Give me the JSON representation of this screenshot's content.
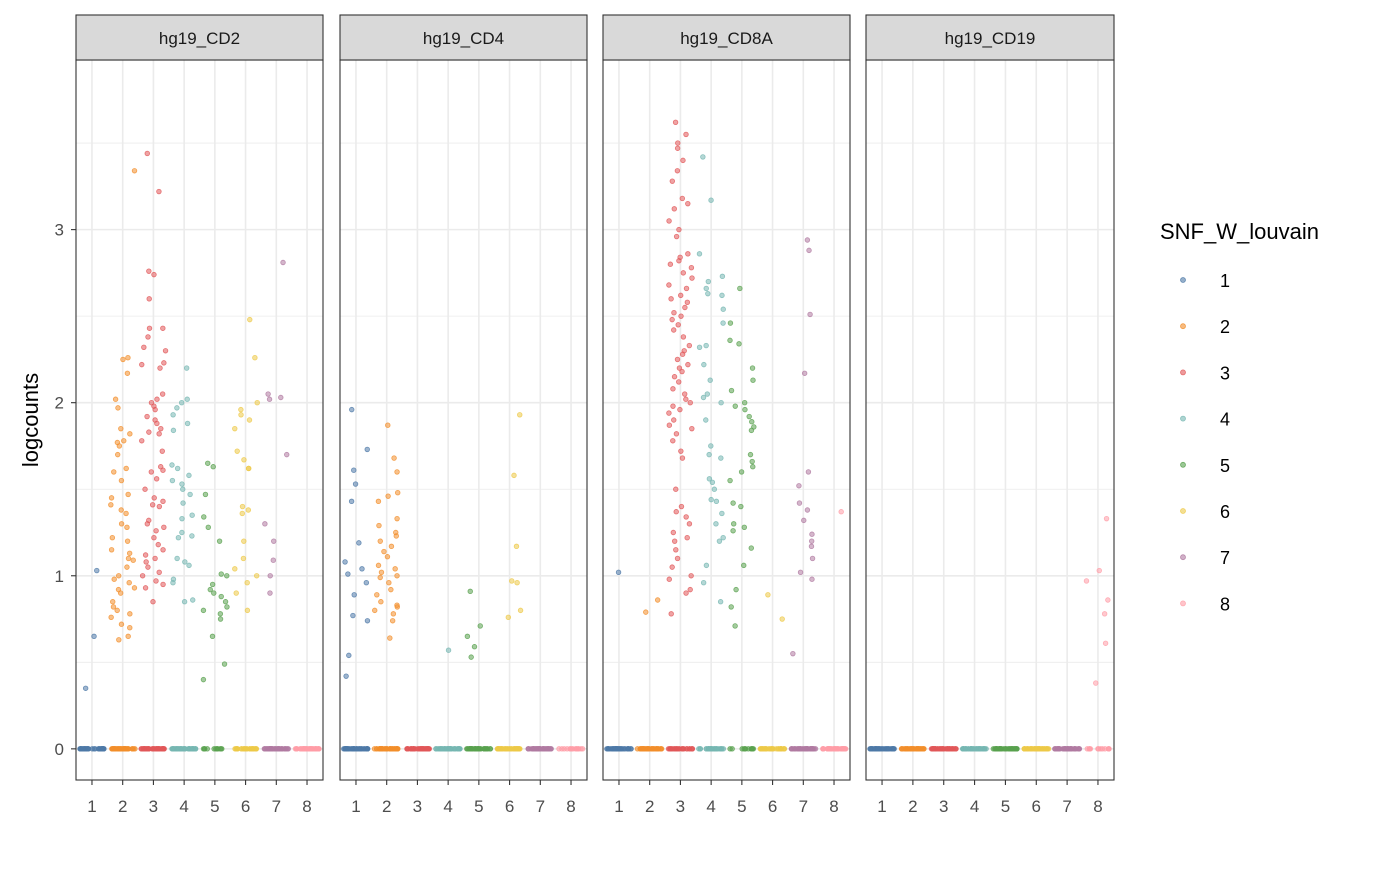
{
  "chart_data": {
    "type": "scatter",
    "subtype": "jitter-faceted",
    "ylabel": "logcounts",
    "xlabel": "",
    "ylim": [
      -0.18,
      3.98
    ],
    "xlim": [
      0.48,
      8.52
    ],
    "yticks": [
      0,
      1,
      2,
      3
    ],
    "xticks": [
      "1",
      "2",
      "3",
      "4",
      "5",
      "6",
      "7",
      "8"
    ],
    "grid": true,
    "legend": {
      "title": "SNF_W_louvain",
      "placement": "right",
      "entries": [
        "1",
        "2",
        "3",
        "4",
        "5",
        "6",
        "7",
        "8"
      ],
      "colors": [
        "#4E79A7",
        "#F28E2B",
        "#E15759",
        "#76B7B2",
        "#59A14F",
        "#EDC948",
        "#B07AA1",
        "#FF9DA7"
      ]
    },
    "facets": [
      {
        "title": "hg19_CD2",
        "zero_counts": [
          40,
          40,
          40,
          40,
          12,
          25,
          40,
          40
        ],
        "nonzero": {
          "1": [
            1.03,
            0.65,
            0.35
          ],
          "2": [
            3.34,
            2.25,
            2.26,
            2.17,
            2.02,
            1.97,
            1.85,
            1.82,
            1.78,
            1.77,
            1.75,
            1.7,
            1.62,
            1.6,
            1.55,
            1.47,
            1.45,
            1.41,
            1.38,
            1.36,
            1.3,
            1.28,
            1.22,
            1.2,
            1.15,
            1.13,
            1.1,
            1.09,
            1.05,
            1.0,
            0.98,
            0.96,
            0.93,
            0.92,
            0.9,
            0.85,
            0.82,
            0.8,
            0.78,
            0.76,
            0.72,
            0.7,
            0.65,
            0.63
          ],
          "3": [
            3.44,
            3.22,
            2.76,
            2.74,
            2.6,
            2.43,
            2.43,
            2.38,
            2.32,
            2.3,
            2.23,
            2.22,
            2.2,
            2.05,
            2.02,
            2.0,
            1.98,
            1.96,
            1.92,
            1.9,
            1.88,
            1.85,
            1.83,
            1.82,
            1.78,
            1.72,
            1.63,
            1.61,
            1.6,
            1.56,
            1.5,
            1.45,
            1.43,
            1.41,
            1.4,
            1.32,
            1.3,
            1.28,
            1.26,
            1.22,
            1.18,
            1.15,
            1.12,
            1.1,
            1.08,
            1.05,
            1.02,
            1.0,
            0.97,
            0.95,
            0.93,
            0.85
          ],
          "4": [
            2.2,
            2.02,
            2.0,
            1.97,
            1.93,
            1.88,
            1.84,
            1.64,
            1.62,
            1.58,
            1.55,
            1.53,
            1.5,
            1.47,
            1.42,
            1.35,
            1.33,
            1.25,
            1.23,
            1.22,
            1.1,
            1.08,
            1.06,
            0.98,
            0.96,
            0.86,
            0.85
          ],
          "5": [
            1.65,
            1.63,
            1.47,
            1.34,
            1.28,
            1.2,
            1.01,
            1.0,
            0.95,
            0.92,
            0.9,
            0.88,
            0.85,
            0.82,
            0.8,
            0.78,
            0.75,
            0.65,
            0.49,
            0.4
          ],
          "6": [
            2.48,
            2.26,
            2.0,
            1.96,
            1.93,
            1.9,
            1.85,
            1.72,
            1.67,
            1.62,
            1.62,
            1.4,
            1.38,
            1.36,
            1.2,
            1.1,
            1.04,
            1.0,
            0.96,
            0.9,
            0.8
          ],
          "7": [
            2.81,
            2.05,
            2.03,
            2.02,
            1.7,
            1.3,
            1.2,
            1.09,
            1.0,
            0.9
          ],
          "8": []
        }
      },
      {
        "title": "hg19_CD4",
        "zero_counts": [
          40,
          40,
          40,
          40,
          40,
          40,
          40,
          15
        ],
        "nonzero": {
          "1": [
            1.96,
            1.73,
            1.61,
            1.53,
            1.43,
            1.19,
            1.08,
            1.04,
            1.01,
            0.96,
            0.89,
            0.77,
            0.74,
            0.54,
            0.42
          ],
          "2": [
            1.87,
            1.68,
            1.6,
            1.48,
            1.46,
            1.43,
            1.33,
            1.29,
            1.25,
            1.23,
            1.2,
            1.17,
            1.14,
            1.11,
            1.06,
            1.04,
            1.02,
            1.0,
            0.99,
            0.96,
            0.92,
            0.89,
            0.85,
            0.83,
            0.82,
            0.8,
            0.78,
            0.74,
            0.64
          ],
          "3": [],
          "4": [
            0.57
          ],
          "5": [
            0.91,
            0.71,
            0.65,
            0.59,
            0.53
          ],
          "6": [
            1.93,
            1.58,
            1.17,
            0.97,
            0.96,
            0.8,
            0.76
          ],
          "7": [],
          "8": []
        }
      },
      {
        "title": "hg19_CD8A",
        "zero_counts": [
          40,
          40,
          25,
          30,
          12,
          30,
          40,
          40
        ],
        "nonzero": {
          "1": [
            1.02
          ],
          "2": [
            0.86,
            0.79
          ],
          "3": [
            3.62,
            3.55,
            3.5,
            3.47,
            3.4,
            3.34,
            3.28,
            3.18,
            3.15,
            3.12,
            3.05,
            3.0,
            2.96,
            2.86,
            2.84,
            2.82,
            2.8,
            2.78,
            2.75,
            2.72,
            2.68,
            2.66,
            2.62,
            2.6,
            2.58,
            2.55,
            2.52,
            2.5,
            2.48,
            2.45,
            2.42,
            2.38,
            2.33,
            2.3,
            2.28,
            2.25,
            2.22,
            2.2,
            2.18,
            2.15,
            2.12,
            2.08,
            2.05,
            2.02,
            2.0,
            1.98,
            1.96,
            1.94,
            1.9,
            1.87,
            1.85,
            1.82,
            1.78,
            1.72,
            1.68,
            1.5,
            1.4,
            1.37,
            1.34,
            1.3,
            1.25,
            1.22,
            1.2,
            1.15,
            1.1,
            1.05,
            1.0,
            0.98,
            0.92,
            0.9,
            0.78
          ],
          "4": [
            3.42,
            3.17,
            2.86,
            2.73,
            2.7,
            2.66,
            2.63,
            2.62,
            2.54,
            2.46,
            2.33,
            2.32,
            2.22,
            2.13,
            2.05,
            2.03,
            2.0,
            1.9,
            1.75,
            1.7,
            1.68,
            1.56,
            1.54,
            1.5,
            1.44,
            1.43,
            1.36,
            1.3,
            1.22,
            1.2,
            1.06,
            0.96,
            0.85
          ],
          "5": [
            2.66,
            2.46,
            2.36,
            2.34,
            2.2,
            2.13,
            2.07,
            2.0,
            1.98,
            1.96,
            1.92,
            1.89,
            1.86,
            1.84,
            1.7,
            1.66,
            1.63,
            1.6,
            1.55,
            1.42,
            1.4,
            1.3,
            1.28,
            1.26,
            1.16,
            1.06,
            0.92,
            0.82,
            0.71
          ],
          "6": [
            0.89,
            0.75
          ],
          "7": [
            2.94,
            2.88,
            2.51,
            2.17,
            1.6,
            1.52,
            1.42,
            1.38,
            1.32,
            1.24,
            1.2,
            1.17,
            1.1,
            1.02,
            0.98,
            0.55
          ],
          "8": [
            1.37
          ]
        }
      },
      {
        "title": "hg19_CD19",
        "zero_counts": [
          40,
          40,
          40,
          40,
          40,
          40,
          40,
          12
        ],
        "nonzero": {
          "1": [],
          "2": [],
          "3": [],
          "4": [],
          "5": [],
          "6": [],
          "7": [],
          "8": [
            1.33,
            1.03,
            0.97,
            0.86,
            0.78,
            0.61,
            0.38
          ]
        }
      }
    ]
  }
}
